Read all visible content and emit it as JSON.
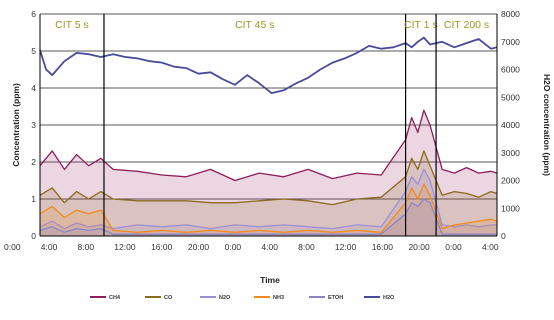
{
  "chart_data": {
    "type": "line",
    "xlabel": "Time",
    "ylabel_left": "Concentration (ppm)",
    "ylabel_right": "H2O concentration (ppm)",
    "ylim_left": [
      0,
      6
    ],
    "ylim_right": [
      0,
      8000
    ],
    "yticks_left": [
      "0",
      "1",
      "2",
      "3",
      "4",
      "5",
      "6"
    ],
    "yticks_right": [
      "0",
      "1000",
      "2000",
      "3000",
      "4000",
      "5000",
      "6000",
      "7000",
      "8000"
    ],
    "xticks": [
      "0:00",
      "4:00",
      "8:00",
      "12:00",
      "16:00",
      "20:00",
      "0:00",
      "4:00",
      "8:00",
      "12:00",
      "16:00",
      "20:00",
      "0:00",
      "4:00"
    ],
    "x_hours_range": [
      0,
      75
    ],
    "gridlines": "horizontal",
    "phases": [
      {
        "label": "CIT 5 s",
        "start_h": 0,
        "end_h": 10.5
      },
      {
        "label": "CIT 45 s",
        "start_h": 10.5,
        "end_h": 60
      },
      {
        "label": "CIT 1 s",
        "start_h": 60,
        "end_h": 65
      },
      {
        "label": "CIT 200 s",
        "start_h": 65,
        "end_h": 75
      }
    ],
    "series": [
      {
        "name": "CH4",
        "color": "#8e1e5c",
        "axis": "left",
        "x": [
          0,
          2,
          4,
          6,
          8,
          10,
          12,
          16,
          20,
          24,
          28,
          32,
          36,
          40,
          44,
          48,
          52,
          56,
          60,
          61,
          62,
          63,
          64,
          66,
          68,
          70,
          72,
          74,
          75
        ],
        "y": [
          1.9,
          2.3,
          1.8,
          2.2,
          1.9,
          2.1,
          1.8,
          1.75,
          1.65,
          1.6,
          1.8,
          1.5,
          1.7,
          1.6,
          1.8,
          1.55,
          1.7,
          1.65,
          2.6,
          3.2,
          2.8,
          3.4,
          3.0,
          1.8,
          1.7,
          1.85,
          1.7,
          1.75,
          1.7
        ]
      },
      {
        "name": "CO",
        "color": "#8b6a1f",
        "axis": "left",
        "x": [
          0,
          2,
          4,
          6,
          8,
          10,
          12,
          16,
          20,
          24,
          28,
          32,
          36,
          40,
          44,
          48,
          52,
          56,
          60,
          61,
          62,
          63,
          64,
          66,
          68,
          70,
          72,
          74,
          75
        ],
        "y": [
          1.1,
          1.3,
          0.9,
          1.2,
          1.0,
          1.2,
          1.0,
          0.95,
          0.95,
          0.95,
          0.9,
          0.9,
          0.95,
          1.0,
          0.95,
          0.85,
          1.0,
          1.05,
          1.6,
          2.1,
          1.8,
          2.3,
          1.9,
          1.1,
          1.2,
          1.15,
          1.05,
          1.2,
          1.15
        ]
      },
      {
        "name": "N2O",
        "color": "#9d8fd6",
        "axis": "left",
        "x": [
          0,
          2,
          4,
          6,
          8,
          10,
          12,
          16,
          20,
          24,
          28,
          32,
          36,
          40,
          44,
          48,
          52,
          56,
          60,
          61,
          62,
          63,
          64,
          66,
          68,
          70,
          72,
          74,
          75
        ],
        "y": [
          0.25,
          0.4,
          0.2,
          0.35,
          0.25,
          0.3,
          0.2,
          0.3,
          0.25,
          0.3,
          0.2,
          0.3,
          0.25,
          0.3,
          0.25,
          0.2,
          0.3,
          0.25,
          1.2,
          1.6,
          1.4,
          1.8,
          1.5,
          0.3,
          0.25,
          0.3,
          0.25,
          0.3,
          0.3
        ]
      },
      {
        "name": "NH3",
        "color": "#f08b1f",
        "axis": "left",
        "x": [
          0,
          2,
          4,
          6,
          8,
          10,
          12,
          16,
          20,
          24,
          28,
          32,
          36,
          40,
          44,
          48,
          52,
          56,
          60,
          61,
          62,
          63,
          64,
          66,
          68,
          70,
          72,
          74,
          75
        ],
        "y": [
          0.6,
          0.8,
          0.5,
          0.7,
          0.6,
          0.7,
          0.15,
          0.1,
          0.15,
          0.1,
          0.15,
          0.1,
          0.15,
          0.1,
          0.15,
          0.1,
          0.15,
          0.1,
          0.9,
          1.3,
          1.0,
          1.4,
          1.1,
          0.2,
          0.3,
          0.35,
          0.4,
          0.45,
          0.4
        ]
      },
      {
        "name": "ETOH",
        "color": "#8b84c8",
        "axis": "left",
        "x": [
          0,
          2,
          4,
          6,
          8,
          10,
          12,
          16,
          20,
          24,
          28,
          32,
          36,
          40,
          44,
          48,
          52,
          56,
          60,
          61,
          62,
          63,
          64,
          66,
          68,
          70,
          72,
          74,
          75
        ],
        "y": [
          0.15,
          0.25,
          0.1,
          0.2,
          0.15,
          0.2,
          0.05,
          0.05,
          0.05,
          0.05,
          0.05,
          0.05,
          0.05,
          0.05,
          0.05,
          0.05,
          0.05,
          0.05,
          0.6,
          0.9,
          0.8,
          1.0,
          0.9,
          0.05,
          0.05,
          0.05,
          0.05,
          0.05,
          0.05
        ]
      },
      {
        "name": "H2O",
        "color": "#4a4a9a",
        "axis": "right",
        "x": [
          0,
          1,
          2,
          4,
          6,
          8,
          10,
          12,
          14,
          16,
          18,
          20,
          22,
          24,
          26,
          28,
          30,
          32,
          34,
          36,
          38,
          40,
          42,
          44,
          46,
          48,
          50,
          52,
          54,
          56,
          58,
          60,
          61,
          62,
          63,
          64,
          65,
          66,
          68,
          70,
          72,
          74,
          75
        ],
        "y": [
          6700,
          6000,
          5800,
          6300,
          6600,
          6550,
          6450,
          6550,
          6450,
          6400,
          6300,
          6250,
          6100,
          6050,
          5850,
          5900,
          5650,
          5450,
          5800,
          5500,
          5150,
          5250,
          5500,
          5700,
          6000,
          6250,
          6400,
          6600,
          6850,
          6750,
          6800,
          6950,
          6800,
          7000,
          7150,
          6900,
          6950,
          7000,
          6800,
          6950,
          7100,
          6750,
          6800
        ]
      }
    ]
  }
}
